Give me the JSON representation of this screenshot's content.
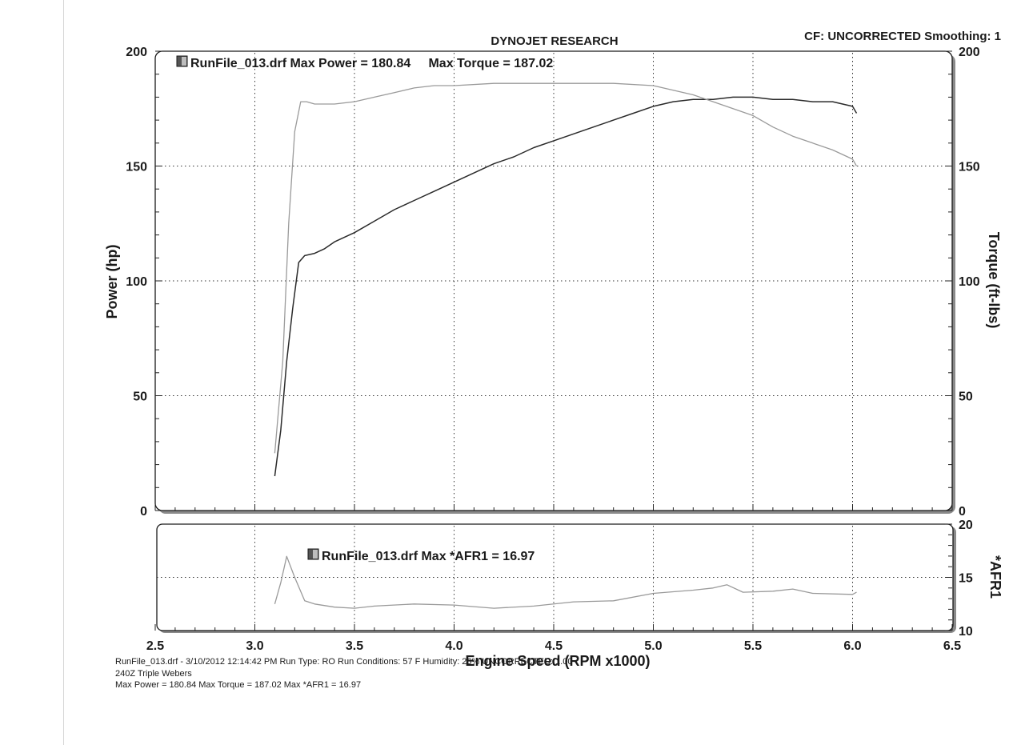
{
  "header": {
    "title": "DYNOJET RESEARCH",
    "info": "CF: UNCORRECTED  Smoothing: 1"
  },
  "chart_data": [
    {
      "type": "line",
      "name": "main",
      "legend_text": "RunFile_013.drf Max Power = 180.84     Max Torque = 187.02",
      "ylabel_left": "Power (hp)",
      "ylabel_right": "Torque (ft-lbs)",
      "xlim": [
        2.5,
        6.5
      ],
      "ylim": [
        0,
        200
      ],
      "y_ticks": [
        0,
        50,
        100,
        150,
        200
      ],
      "grid": true,
      "colors": {
        "power": "#2a2a2a",
        "torque": "#9a9a9a"
      },
      "series": [
        {
          "key": "power",
          "x": [
            3.1,
            3.13,
            3.16,
            3.19,
            3.22,
            3.25,
            3.3,
            3.35,
            3.4,
            3.5,
            3.6,
            3.7,
            3.8,
            3.9,
            4.0,
            4.1,
            4.2,
            4.3,
            4.4,
            4.5,
            4.6,
            4.7,
            4.8,
            4.9,
            5.0,
            5.1,
            5.2,
            5.3,
            5.4,
            5.5,
            5.6,
            5.7,
            5.8,
            5.9,
            6.0,
            6.02
          ],
          "y": [
            15,
            35,
            65,
            88,
            108,
            111,
            112,
            114,
            117,
            121,
            126,
            131,
            135,
            139,
            143,
            147,
            151,
            154,
            158,
            161,
            164,
            167,
            170,
            173,
            176,
            178,
            179,
            179,
            180,
            180,
            179,
            179,
            178,
            178,
            176,
            173
          ]
        },
        {
          "key": "torque",
          "x": [
            3.1,
            3.14,
            3.17,
            3.2,
            3.23,
            3.26,
            3.3,
            3.4,
            3.5,
            3.6,
            3.7,
            3.8,
            3.9,
            4.0,
            4.2,
            4.4,
            4.6,
            4.8,
            5.0,
            5.1,
            5.2,
            5.3,
            5.4,
            5.5,
            5.6,
            5.7,
            5.8,
            5.9,
            6.0,
            6.02
          ],
          "y": [
            25,
            65,
            125,
            165,
            178,
            178,
            177,
            177,
            178,
            180,
            182,
            184,
            185,
            185,
            186,
            186,
            186,
            186,
            185,
            183,
            181,
            178,
            175,
            172,
            167,
            163,
            160,
            157,
            153,
            150
          ]
        }
      ]
    },
    {
      "type": "line",
      "name": "afr",
      "legend_text": "RunFile_013.drf Max *AFR1 = 16.97",
      "ylabel_right": "*AFR1",
      "xlabel": "Engine Speed (RPM x1000)",
      "xlim": [
        2.5,
        6.5
      ],
      "ylim": [
        10,
        20
      ],
      "x_ticks": [
        "2.5",
        "3.0",
        "3.5",
        "4.0",
        "4.5",
        "5.0",
        "5.5",
        "6.0",
        "6.5"
      ],
      "y_ticks": [
        10,
        15,
        20
      ],
      "grid": true,
      "colors": {
        "afr": "#9a9a9a"
      },
      "series": [
        {
          "key": "afr",
          "x": [
            3.1,
            3.13,
            3.16,
            3.2,
            3.25,
            3.3,
            3.4,
            3.5,
            3.6,
            3.8,
            4.0,
            4.2,
            4.4,
            4.6,
            4.8,
            5.0,
            5.2,
            5.3,
            5.37,
            5.45,
            5.6,
            5.7,
            5.8,
            6.0,
            6.02
          ],
          "y": [
            12.5,
            14.5,
            16.97,
            15.0,
            12.8,
            12.5,
            12.2,
            12.1,
            12.3,
            12.5,
            12.4,
            12.1,
            12.3,
            12.7,
            12.8,
            13.5,
            13.8,
            14.0,
            14.3,
            13.6,
            13.7,
            13.9,
            13.5,
            13.4,
            13.6
          ]
        }
      ]
    }
  ],
  "footer": {
    "line1": "RunFile_013.drf - 3/10/2012 12:14:42 PM  Run Type: RO  Run Conditions: 57 F  Humidity: 26%  UNCORRECTED: 1.00",
    "line2": "240Z Triple Webers",
    "line3": "Max Power = 180.84  Max Torque = 187.02  Max *AFR1 = 16.97"
  }
}
